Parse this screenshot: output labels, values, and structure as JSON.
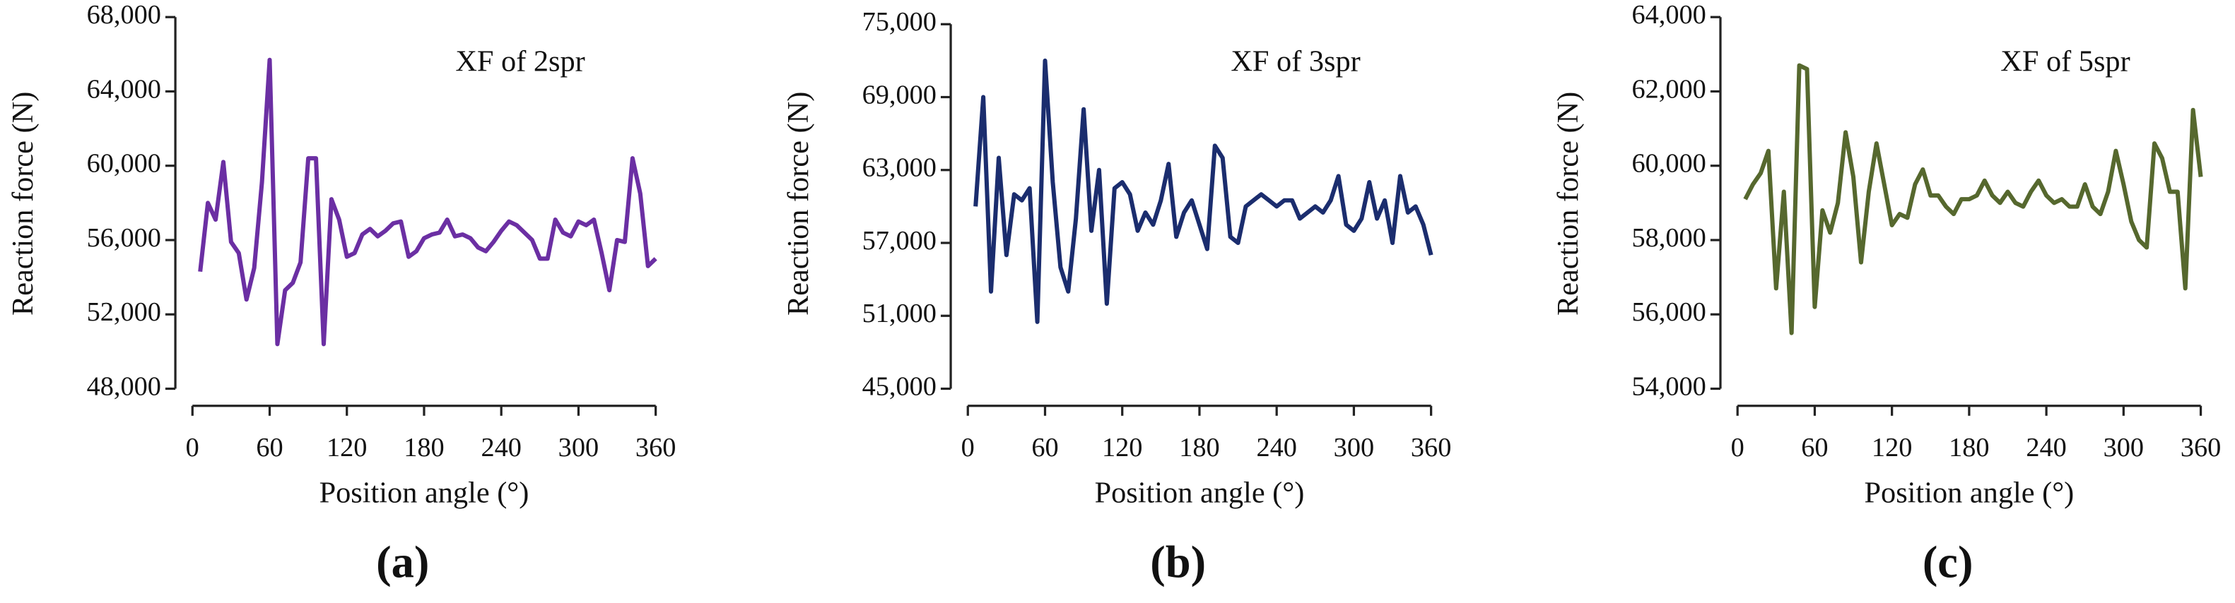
{
  "chart_data": [
    {
      "type": "line",
      "title": "XF of 2spr",
      "panel_label": "(a)",
      "x_label": "Position angle (°)",
      "y_label": "Reaction force (N)",
      "xlim": [
        0,
        360
      ],
      "xticks": [
        0,
        60,
        120,
        180,
        240,
        300,
        360
      ],
      "ylim": [
        48000,
        68000
      ],
      "yticks": [
        {
          "value": 48000,
          "label": "48,000"
        },
        {
          "value": 52000,
          "label": "52,000"
        },
        {
          "value": 56000,
          "label": "56,000"
        },
        {
          "value": 60000,
          "label": "60,000"
        },
        {
          "value": 64000,
          "label": "64,000"
        },
        {
          "value": 68000,
          "label": "68,000"
        }
      ],
      "x": [
        6,
        12,
        18,
        24,
        30,
        36,
        42,
        48,
        54,
        60,
        66,
        72,
        78,
        84,
        90,
        96,
        102,
        108,
        114,
        120,
        126,
        132,
        138,
        144,
        150,
        156,
        162,
        168,
        174,
        180,
        186,
        192,
        198,
        204,
        210,
        216,
        222,
        228,
        234,
        240,
        246,
        252,
        258,
        264,
        270,
        276,
        282,
        288,
        294,
        300,
        306,
        312,
        318,
        324,
        330,
        336,
        342,
        348,
        354,
        360
      ],
      "series": [
        {
          "color": "#6b2fa3",
          "values": [
            54300,
            58000,
            57100,
            60200,
            55900,
            55300,
            52800,
            54500,
            59100,
            65700,
            50400,
            53300,
            53700,
            54800,
            60400,
            60400,
            50400,
            58200,
            57100,
            55100,
            55300,
            56300,
            56600,
            56200,
            56500,
            56900,
            57000,
            55100,
            55400,
            56100,
            56300,
            56400,
            57100,
            56200,
            56300,
            56100,
            55600,
            55400,
            55900,
            56500,
            57000,
            56800,
            56400,
            56000,
            55000,
            55000,
            57100,
            56400,
            56200,
            57000,
            56800,
            57100,
            55300,
            53300,
            56000,
            55900,
            60400,
            58500,
            54600,
            55000
          ]
        }
      ]
    },
    {
      "type": "line",
      "title": "XF of 3spr",
      "panel_label": "(b)",
      "x_label": "Position angle (°)",
      "y_label": "Reaction force (N)",
      "xlim": [
        0,
        360
      ],
      "xticks": [
        0,
        60,
        120,
        180,
        240,
        300,
        360
      ],
      "ylim": [
        45000,
        75000
      ],
      "yticks": [
        {
          "value": 45000,
          "label": "45,000"
        },
        {
          "value": 51000,
          "label": "51,000"
        },
        {
          "value": 57000,
          "label": "57,000"
        },
        {
          "value": 63000,
          "label": "63,000"
        },
        {
          "value": 69000,
          "label": "69,000"
        },
        {
          "value": 75000,
          "label": "75,000"
        }
      ],
      "x": [
        6,
        12,
        18,
        24,
        30,
        36,
        42,
        48,
        54,
        60,
        66,
        72,
        78,
        84,
        90,
        96,
        102,
        108,
        114,
        120,
        126,
        132,
        138,
        144,
        150,
        156,
        162,
        168,
        174,
        180,
        186,
        192,
        198,
        204,
        210,
        216,
        222,
        228,
        234,
        240,
        246,
        252,
        258,
        264,
        270,
        276,
        282,
        288,
        294,
        300,
        306,
        312,
        318,
        324,
        330,
        336,
        342,
        348,
        354,
        360
      ],
      "series": [
        {
          "color": "#1b2d6e",
          "values": [
            60000,
            69000,
            53000,
            64000,
            56000,
            61000,
            60500,
            61500,
            50500,
            72000,
            62000,
            55000,
            53000,
            59000,
            68000,
            58000,
            63000,
            52000,
            61500,
            62000,
            61000,
            58000,
            59500,
            58500,
            60500,
            63500,
            57500,
            59500,
            60500,
            58500,
            56500,
            65000,
            64000,
            57500,
            57000,
            60000,
            60500,
            61000,
            60500,
            60000,
            60500,
            60500,
            59000,
            59500,
            60000,
            59500,
            60500,
            62500,
            58500,
            58000,
            59000,
            62000,
            59000,
            60500,
            57000,
            62500,
            59500,
            60000,
            58500,
            56000
          ]
        }
      ]
    },
    {
      "type": "line",
      "title": "XF of 5spr",
      "panel_label": "(c)",
      "x_label": "Position angle (°)",
      "y_label": "Reaction force (N)",
      "xlim": [
        0,
        360
      ],
      "xticks": [
        0,
        60,
        120,
        180,
        240,
        300,
        360
      ],
      "ylim": [
        54000,
        64000
      ],
      "yticks": [
        {
          "value": 54000,
          "label": "54,000"
        },
        {
          "value": 56000,
          "label": "56,000"
        },
        {
          "value": 58000,
          "label": "58,000"
        },
        {
          "value": 60000,
          "label": "60,000"
        },
        {
          "value": 62000,
          "label": "62,000"
        },
        {
          "value": 64000,
          "label": "64,000"
        }
      ],
      "x": [
        6,
        12,
        18,
        24,
        30,
        36,
        42,
        48,
        54,
        60,
        66,
        72,
        78,
        84,
        90,
        96,
        102,
        108,
        114,
        120,
        126,
        132,
        138,
        144,
        150,
        156,
        162,
        168,
        174,
        180,
        186,
        192,
        198,
        204,
        210,
        216,
        222,
        228,
        234,
        240,
        246,
        252,
        258,
        264,
        270,
        276,
        282,
        288,
        294,
        300,
        306,
        312,
        318,
        324,
        330,
        336,
        342,
        348,
        354,
        360
      ],
      "series": [
        {
          "color": "#56682e",
          "values": [
            59100,
            59500,
            59800,
            60400,
            56700,
            59300,
            55500,
            62700,
            62600,
            56200,
            58800,
            58200,
            59000,
            60900,
            59700,
            57400,
            59300,
            60600,
            59500,
            58400,
            58700,
            58600,
            59500,
            59900,
            59200,
            59200,
            58900,
            58700,
            59100,
            59100,
            59200,
            59600,
            59200,
            59000,
            59300,
            59000,
            58900,
            59300,
            59600,
            59200,
            59000,
            59100,
            58900,
            58900,
            59500,
            58900,
            58700,
            59300,
            60400,
            59500,
            58500,
            58000,
            57800,
            60600,
            60200,
            59300,
            59300,
            56700,
            61500,
            59700
          ]
        }
      ]
    }
  ]
}
